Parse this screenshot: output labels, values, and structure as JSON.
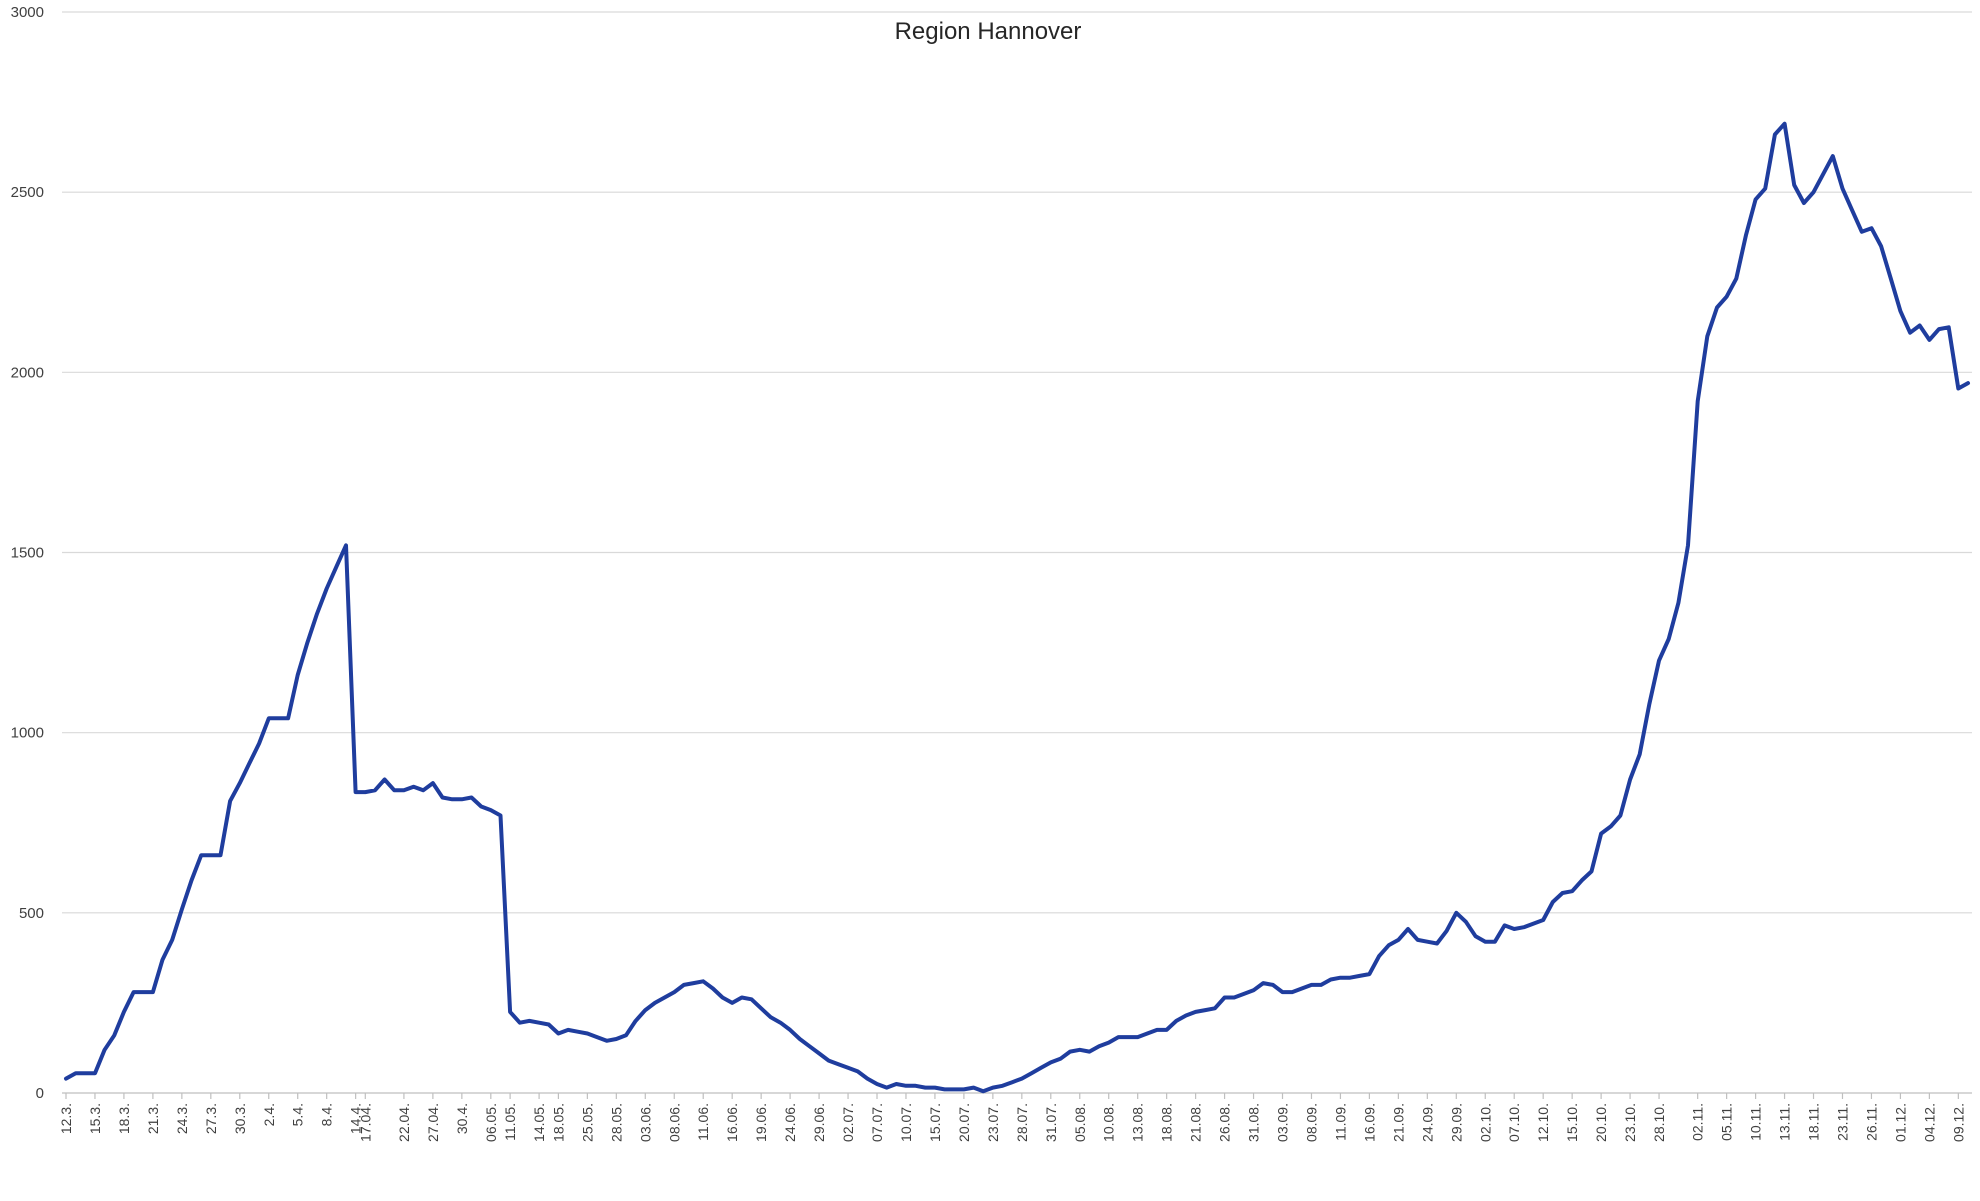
{
  "chart_data": {
    "type": "line",
    "title": "Region Hannover",
    "xlabel": "",
    "ylabel": "",
    "ylim": [
      0,
      3000
    ],
    "yticks": [
      0,
      500,
      1000,
      1500,
      2000,
      2500,
      3000
    ],
    "grid": true,
    "legend": "none",
    "colors": {
      "series": "#1f3d9e",
      "grid": "#d9d9d9"
    },
    "x": [
      "12.3.",
      "13.3.",
      "14.3.",
      "15.3.",
      "16.3.",
      "17.3.",
      "18.3.",
      "19.3.",
      "20.3.",
      "21.3.",
      "22.3.",
      "23.3.",
      "24.3.",
      "25.3.",
      "26.3.",
      "27.3.",
      "28.3.",
      "29.3.",
      "30.3.",
      "31.3.",
      "1.4.",
      "2.4.",
      "3.4.",
      "4.4.",
      "5.4.",
      "6.4.",
      "7.4.",
      "8.4.",
      "9.4.",
      "10.4.",
      "14.4.",
      "17.04.",
      "18.04.",
      "20.04.",
      "21.04.",
      "22.04.",
      "23.04.",
      "24.04.",
      "27.04.",
      "28.04.",
      "29.04.",
      "30.4.",
      "04.05.",
      "05.05.",
      "06.05.",
      "07.05.",
      "11.05.",
      "12.05.",
      "13.05.",
      "14.05.",
      "15.05.",
      "18.05.",
      "19.05.",
      "20.05.",
      "25.05.",
      "26.05.",
      "27.05.",
      "28.05.",
      "29.05.",
      "02.06.",
      "03.06.",
      "04.06.",
      "05.06.",
      "08.06.",
      "09.06.",
      "10.06.",
      "11.06.",
      "12.06.",
      "15.06.",
      "16.06.",
      "17.06.",
      "18.06.",
      "19.06.",
      "22.06.",
      "23.06.",
      "24.06.",
      "25.06.",
      "26.06.",
      "29.06.",
      "30.06.",
      "01.07.",
      "02.07.",
      "03.07.",
      "06.07.",
      "07.07.",
      "08.07.",
      "09.07.",
      "10.07.",
      "13.07.",
      "14.07.",
      "15.07.",
      "16.07.",
      "17.07.",
      "20.07.",
      "21.07.",
      "22.07.",
      "23.07.",
      "24.07.",
      "27.07.",
      "28.07.",
      "29.07.",
      "30.07.",
      "31.07.",
      "03.08.",
      "04.08.",
      "05.08.",
      "06.08.",
      "07.08.",
      "10.08.",
      "11.08.",
      "12.08.",
      "13.08.",
      "14.08.",
      "17.08.",
      "18.08.",
      "19.08.",
      "20.08.",
      "21.08.",
      "24.08.",
      "25.08.",
      "26.08.",
      "27.08.",
      "28.08.",
      "31.08.",
      "01.09.",
      "02.09.",
      "03.09.",
      "04.09.",
      "07.09.",
      "08.09.",
      "09.09.",
      "10.09.",
      "11.09.",
      "14.09.",
      "15.09.",
      "16.09.",
      "17.09.",
      "18.09.",
      "21.09.",
      "22.09.",
      "23.09.",
      "24.09.",
      "25.09.",
      "28.09.",
      "29.09.",
      "30.09.",
      "01.10.",
      "02.10.",
      "05.10.",
      "06.10.",
      "07.10.",
      "08.10.",
      "09.10.",
      "12.10.",
      "13.10.",
      "14.10.",
      "15.10.",
      "16.10.",
      "19.10.",
      "20.10.",
      "21.10.",
      "22.10.",
      "23.10.",
      "26.10.",
      "27.10.",
      "28.10.",
      "29.10.",
      "30.10.",
      "31.10.",
      "02.11.",
      "03.11.",
      "04.11.",
      "05.11.",
      "06.11.",
      "09.11.",
      "10.11.",
      "11.11.",
      "12.11.",
      "13.11.",
      "16.11.",
      "17.11.",
      "18.11.",
      "19.11.",
      "20.11.",
      "23.11.",
      "24.11.",
      "25.11.",
      "26.11.",
      "27.11.",
      "30.11.",
      "01.12.",
      "02.12.",
      "03.12.",
      "04.12.",
      "07.12.",
      "08.12.",
      "09.12.",
      "10.12."
    ],
    "xtick_labels": [
      "12.3.",
      "15.3.",
      "18.3.",
      "21.3.",
      "24.3.",
      "27.3.",
      "30.3.",
      "2.4.",
      "5.4.",
      "8.4.",
      "14.4.",
      "17.04.",
      "22.04.",
      "27.04.",
      "30.4.",
      "06.05.",
      "11.05.",
      "14.05.",
      "18.05.",
      "25.05.",
      "28.05.",
      "03.06.",
      "08.06.",
      "11.06.",
      "16.06.",
      "19.06.",
      "24.06.",
      "29.06.",
      "02.07.",
      "07.07.",
      "10.07.",
      "15.07.",
      "20.07.",
      "23.07.",
      "28.07.",
      "31.07.",
      "05.08.",
      "10.08.",
      "13.08.",
      "18.08.",
      "21.08.",
      "26.08.",
      "31.08.",
      "03.09.",
      "08.09.",
      "11.09.",
      "16.09.",
      "21.09.",
      "24.09.",
      "29.09.",
      "02.10.",
      "07.10.",
      "12.10.",
      "15.10.",
      "20.10.",
      "23.10.",
      "28.10.",
      "02.11.",
      "05.11.",
      "10.11.",
      "13.11.",
      "18.11.",
      "23.11.",
      "26.11.",
      "01.12.",
      "04.12.",
      "09.12."
    ],
    "series": [
      {
        "values": [
          40,
          55,
          55,
          55,
          120,
          160,
          225,
          280,
          280,
          280,
          370,
          425,
          510,
          590,
          660,
          660,
          660,
          810,
          860,
          915,
          970,
          1040,
          1040,
          1040,
          1160,
          1250,
          1330,
          1400,
          1460,
          1520,
          835,
          835,
          840,
          870,
          840,
          840,
          850,
          840,
          860,
          820,
          815,
          815,
          820,
          795,
          785,
          770,
          225,
          195,
          200,
          195,
          190,
          165,
          175,
          170,
          165,
          155,
          145,
          150,
          160,
          200,
          230,
          250,
          265,
          280,
          300,
          305,
          310,
          290,
          265,
          250,
          265,
          260,
          235,
          210,
          195,
          175,
          150,
          130,
          110,
          90,
          80,
          70,
          60,
          40,
          25,
          15,
          25,
          20,
          20,
          15,
          15,
          10,
          10,
          10,
          15,
          5,
          15,
          20,
          30,
          40,
          55,
          70,
          85,
          95,
          115,
          120,
          115,
          130,
          140,
          155,
          155,
          155,
          165,
          175,
          175,
          200,
          215,
          225,
          230,
          235,
          265,
          265,
          275,
          285,
          305,
          300,
          280,
          280,
          290,
          300,
          300,
          315,
          320,
          320,
          325,
          330,
          380,
          410,
          425,
          455,
          425,
          420,
          415,
          450,
          500,
          475,
          435,
          420,
          420,
          465,
          455,
          460,
          470,
          480,
          530,
          555,
          560,
          590,
          615,
          720,
          740,
          770,
          870,
          940,
          1080,
          1200,
          1260,
          1360,
          1520,
          1920,
          2100,
          2180,
          2210,
          2260,
          2380,
          2480,
          2510,
          2660,
          2690,
          2520,
          2470,
          2500,
          2550,
          2600,
          2510,
          2450,
          2390,
          2400,
          2350,
          2260,
          2170,
          2110,
          2130,
          2090,
          2120,
          2125,
          1955,
          1970
        ]
      }
    ]
  }
}
